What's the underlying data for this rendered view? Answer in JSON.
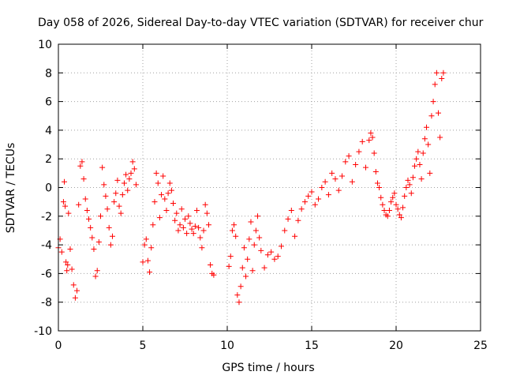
{
  "chart_data": {
    "type": "scatter",
    "title": "Day 058 of 2026, Sidereal Day-to-day VTEC variation (SDTVAR) for receiver chur",
    "xlabel": "GPS time / hours",
    "ylabel": "SDTVAR / TECUs",
    "xlim": [
      0,
      25
    ],
    "ylim": [
      -10,
      10
    ],
    "xticks": [
      0,
      5,
      10,
      15,
      20,
      25
    ],
    "yticks": [
      -10,
      -8,
      -6,
      -4,
      -2,
      0,
      2,
      4,
      6,
      8,
      10
    ],
    "grid": true,
    "marker": "+",
    "color": "#ff0000",
    "series": [
      {
        "name": "SDTVAR",
        "x": [
          0.0,
          0.1,
          0.2,
          0.3,
          0.35,
          0.4,
          0.45,
          0.5,
          0.55,
          0.6,
          0.7,
          0.8,
          0.9,
          1.0,
          1.1,
          1.2,
          1.3,
          1.4,
          1.5,
          1.6,
          1.7,
          1.8,
          1.9,
          2.0,
          2.1,
          2.2,
          2.3,
          2.4,
          2.5,
          2.6,
          2.7,
          2.8,
          2.9,
          3.0,
          3.1,
          3.2,
          3.3,
          3.4,
          3.5,
          3.6,
          3.7,
          3.8,
          3.9,
          4.0,
          4.1,
          4.2,
          4.3,
          4.4,
          4.5,
          4.6,
          5.0,
          5.1,
          5.2,
          5.3,
          5.4,
          5.5,
          5.6,
          5.7,
          5.8,
          5.9,
          6.0,
          6.1,
          6.2,
          6.3,
          6.4,
          6.5,
          6.6,
          6.7,
          6.8,
          6.9,
          7.0,
          7.1,
          7.2,
          7.3,
          7.4,
          7.5,
          7.6,
          7.7,
          7.8,
          7.9,
          8.0,
          8.1,
          8.2,
          8.3,
          8.4,
          8.5,
          8.6,
          8.7,
          8.8,
          8.9,
          9.0,
          9.1,
          9.2,
          10.1,
          10.2,
          10.3,
          10.4,
          10.5,
          10.6,
          10.7,
          10.8,
          10.9,
          11.0,
          11.1,
          11.2,
          11.3,
          11.4,
          11.5,
          11.6,
          11.7,
          11.8,
          11.9,
          12.0,
          12.2,
          12.4,
          12.6,
          12.8,
          13.0,
          13.2,
          13.4,
          13.6,
          13.8,
          14.0,
          14.2,
          14.4,
          14.6,
          14.8,
          15.0,
          15.2,
          15.4,
          15.6,
          15.8,
          16.0,
          16.2,
          16.4,
          16.6,
          16.8,
          17.0,
          17.2,
          17.4,
          17.6,
          17.8,
          18.0,
          18.2,
          18.4,
          18.5,
          18.6,
          18.7,
          18.8,
          18.9,
          19.0,
          19.1,
          19.2,
          19.3,
          19.4,
          19.5,
          19.6,
          19.7,
          19.8,
          19.9,
          20.0,
          20.1,
          20.2,
          20.3,
          20.4,
          20.5,
          20.6,
          20.7,
          20.8,
          20.9,
          21.0,
          21.1,
          21.2,
          21.3,
          21.4,
          21.5,
          21.6,
          21.7,
          21.8,
          21.9,
          22.0,
          22.1,
          22.2,
          22.3,
          22.4,
          22.5,
          22.6,
          22.7,
          22.8
        ],
        "y": [
          -4.2,
          -3.6,
          -4.5,
          -1.0,
          0.4,
          -1.3,
          -5.2,
          -5.8,
          -5.4,
          -1.8,
          -4.3,
          -5.7,
          -6.8,
          -7.7,
          -7.2,
          -1.2,
          1.5,
          1.8,
          0.6,
          -0.8,
          -1.6,
          -2.2,
          -2.8,
          -3.5,
          -4.3,
          -6.2,
          -5.8,
          -3.8,
          -2.0,
          1.4,
          0.2,
          -0.6,
          -1.5,
          -2.8,
          -4.0,
          -3.4,
          -1.0,
          -0.4,
          0.5,
          -1.3,
          -1.8,
          -0.5,
          0.3,
          0.9,
          -0.2,
          0.6,
          1.0,
          1.8,
          1.3,
          0.2,
          -5.2,
          -4.0,
          -3.6,
          -5.1,
          -5.9,
          -4.2,
          -2.6,
          -1.0,
          1.0,
          0.3,
          -2.1,
          -0.5,
          0.8,
          -0.8,
          -1.6,
          -0.4,
          0.3,
          -0.2,
          -1.1,
          -2.3,
          -1.8,
          -3.0,
          -2.6,
          -1.5,
          -2.8,
          -2.2,
          -3.2,
          -2.0,
          -2.5,
          -2.9,
          -3.2,
          -2.7,
          -1.6,
          -2.8,
          -3.5,
          -4.2,
          -3.0,
          -1.2,
          -1.8,
          -2.6,
          -5.4,
          -6.0,
          -6.1,
          -5.5,
          -4.8,
          -3.0,
          -2.6,
          -3.4,
          -7.5,
          -8.0,
          -6.9,
          -5.6,
          -4.2,
          -6.2,
          -5.0,
          -3.6,
          -2.4,
          -5.8,
          -4.0,
          -3.0,
          -2.0,
          -3.5,
          -4.4,
          -5.6,
          -4.7,
          -4.5,
          -5.0,
          -4.8,
          -4.1,
          -3.0,
          -2.2,
          -1.6,
          -3.4,
          -2.3,
          -1.5,
          -1.0,
          -0.6,
          -0.3,
          -1.2,
          -0.8,
          0.0,
          0.4,
          -0.5,
          1.0,
          0.6,
          -0.2,
          0.8,
          1.8,
          2.2,
          0.4,
          1.6,
          2.5,
          3.2,
          1.4,
          3.3,
          3.8,
          3.5,
          2.4,
          1.1,
          0.3,
          0.0,
          -0.7,
          -1.2,
          -1.6,
          -1.9,
          -2.0,
          -1.6,
          -1.0,
          -0.7,
          -0.4,
          -1.2,
          -1.5,
          -1.9,
          -2.1,
          -1.4,
          -0.6,
          0.0,
          0.5,
          0.2,
          -0.4,
          0.7,
          1.5,
          2.0,
          2.5,
          1.6,
          0.6,
          2.4,
          3.4,
          4.2,
          3.0,
          1.0,
          5.0,
          6.0,
          7.2,
          8.0,
          5.2,
          3.5,
          7.6,
          8.0
        ]
      }
    ]
  }
}
